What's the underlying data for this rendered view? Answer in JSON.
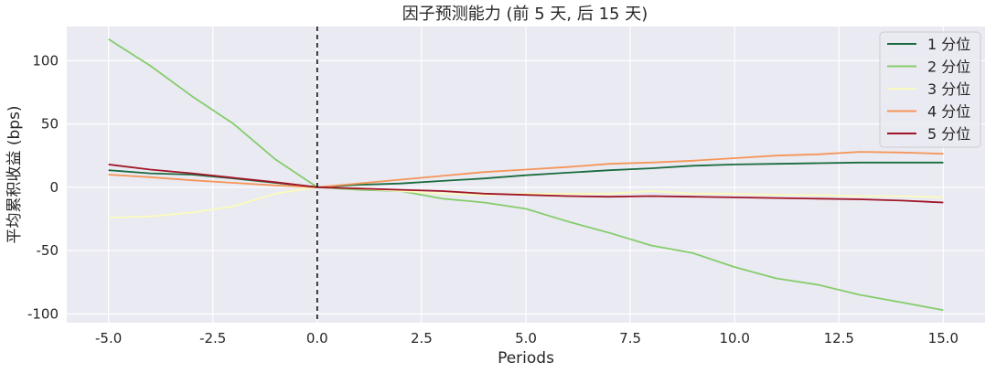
{
  "chart_data": {
    "type": "line",
    "title": "因子预测能力 (前 5 天, 后 15 天)",
    "xlabel": "Periods",
    "ylabel": "平均累积收益 (bps)",
    "x": [
      -5,
      -4,
      -3,
      -2,
      -1,
      0,
      1,
      2,
      3,
      4,
      5,
      6,
      7,
      8,
      9,
      10,
      11,
      12,
      13,
      14,
      15
    ],
    "xlim": [
      -6.0,
      16.0
    ],
    "ylim": [
      -107,
      127
    ],
    "xticks": [
      -5.0,
      -2.5,
      0.0,
      2.5,
      5.0,
      7.5,
      10.0,
      12.5,
      15.0
    ],
    "xtick_labels": [
      "-5.0",
      "-2.5",
      "0.0",
      "2.5",
      "5.0",
      "7.5",
      "10.0",
      "12.5",
      "15.0"
    ],
    "yticks": [
      100,
      50,
      0,
      -50,
      -100
    ],
    "ytick_labels": [
      "100",
      "50",
      "0",
      "-50",
      "-100"
    ],
    "grid": true,
    "background": "#eaeaf2",
    "vline": {
      "x": 0,
      "style": "dashed",
      "color": "#111111"
    },
    "legend_position": "top-right",
    "series": [
      {
        "name": "1 分位",
        "color": "#1a6b3f",
        "values": [
          13.5,
          11,
          10,
          7,
          3.5,
          0,
          2,
          3,
          5,
          7,
          9.5,
          11.5,
          13.5,
          15,
          17,
          18,
          18.5,
          19,
          19.5,
          19.5,
          19.5
        ]
      },
      {
        "name": "2 分位",
        "color": "#86cc6b",
        "values": [
          117,
          96,
          72,
          50,
          22,
          0,
          -2,
          -3,
          -9,
          -12,
          -17,
          -27,
          -36,
          -46,
          -52,
          -63,
          -72,
          -77,
          -85,
          -91,
          -97
        ]
      },
      {
        "name": "3 分位",
        "color": "#fbfbbd",
        "values": [
          -24,
          -23,
          -20,
          -15,
          -5,
          0,
          -1,
          -3,
          -5,
          -6,
          -5,
          -5,
          -5,
          -3,
          -5,
          -5,
          -6,
          -6,
          -7,
          -7,
          -8
        ]
      },
      {
        "name": "4 分位",
        "color": "#f59558",
        "values": [
          10,
          8,
          5.5,
          3.5,
          1.5,
          0,
          3,
          6,
          9,
          12,
          14,
          16,
          18.5,
          19.5,
          21,
          23,
          25,
          26,
          28,
          27.5,
          26.5
        ]
      },
      {
        "name": "5 分位",
        "color": "#a11527",
        "values": [
          18,
          14,
          11,
          7.5,
          4,
          0,
          -1,
          -2,
          -3,
          -5,
          -6,
          -7,
          -7.5,
          -7,
          -7.5,
          -8,
          -8.5,
          -9,
          -9.5,
          -10.5,
          -12
        ]
      }
    ]
  }
}
